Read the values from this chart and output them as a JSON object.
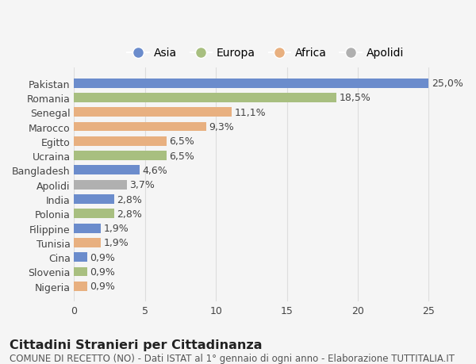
{
  "categories": [
    "Pakistan",
    "Romania",
    "Senegal",
    "Marocco",
    "Egitto",
    "Ucraina",
    "Bangladesh",
    "Apolidi",
    "India",
    "Polonia",
    "Filippine",
    "Tunisia",
    "Cina",
    "Slovenia",
    "Nigeria"
  ],
  "values": [
    25.0,
    18.5,
    11.1,
    9.3,
    6.5,
    6.5,
    4.6,
    3.7,
    2.8,
    2.8,
    1.9,
    1.9,
    0.9,
    0.9,
    0.9
  ],
  "labels": [
    "25,0%",
    "18,5%",
    "11,1%",
    "9,3%",
    "6,5%",
    "6,5%",
    "4,6%",
    "3,7%",
    "2,8%",
    "2,8%",
    "1,9%",
    "1,9%",
    "0,9%",
    "0,9%",
    "0,9%"
  ],
  "colors": [
    "#6b8ccc",
    "#a8bf80",
    "#e8b080",
    "#e8b080",
    "#e8b080",
    "#a8bf80",
    "#6b8ccc",
    "#b0b0b0",
    "#6b8ccc",
    "#a8bf80",
    "#6b8ccc",
    "#e8b080",
    "#6b8ccc",
    "#a8bf80",
    "#e8b080"
  ],
  "legend_labels": [
    "Asia",
    "Europa",
    "Africa",
    "Apolidi"
  ],
  "legend_colors": [
    "#6b8ccc",
    "#a8bf80",
    "#e8b080",
    "#b0b0b0"
  ],
  "xlim": [
    0,
    27
  ],
  "xticks": [
    0,
    5,
    10,
    15,
    20,
    25
  ],
  "title": "Cittadini Stranieri per Cittadinanza",
  "subtitle": "COMUNE DI RECETTO (NO) - Dati ISTAT al 1° gennaio di ogni anno - Elaborazione TUTTITALIA.IT",
  "bg_color": "#f5f5f5",
  "grid_color": "#dddddd",
  "label_fontsize": 9.0,
  "tick_fontsize": 9.0,
  "title_fontsize": 11.5,
  "subtitle_fontsize": 8.5,
  "bar_height": 0.65
}
